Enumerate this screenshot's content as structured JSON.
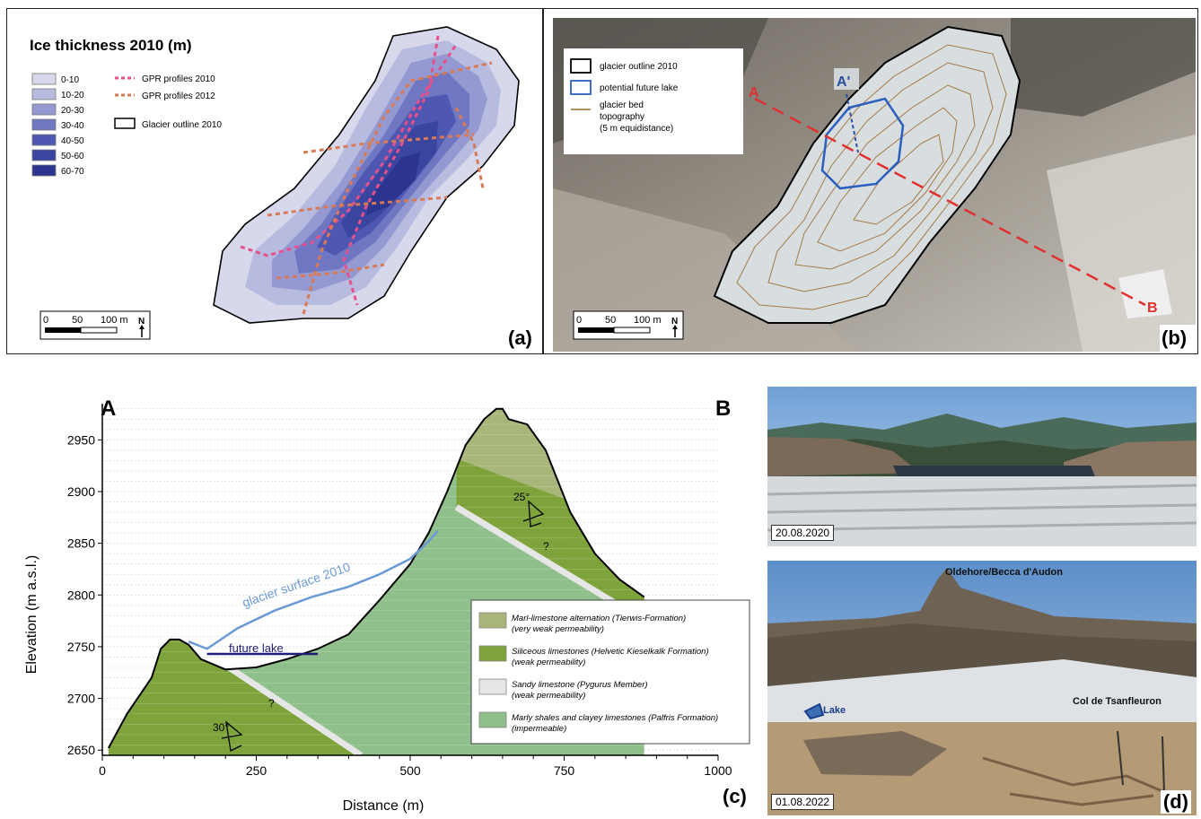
{
  "panel_a": {
    "title": "Ice thickness 2010 (m)",
    "legend": [
      {
        "label": "0-10",
        "color": "#d7d8ec"
      },
      {
        "label": "10-20",
        "color": "#b8bbe0"
      },
      {
        "label": "20-30",
        "color": "#9599d2"
      },
      {
        "label": "30-40",
        "color": "#6f77c3"
      },
      {
        "label": "40-50",
        "color": "#4e57b2"
      },
      {
        "label": "50-60",
        "color": "#3a45a0"
      },
      {
        "label": "60-70",
        "color": "#2b3590"
      }
    ],
    "gpr2010": "GPR profiles 2010",
    "gpr2012": "GPR profiles 2012",
    "outline": "Glacier outline 2010",
    "scale": {
      "t0": "0",
      "t1": "50",
      "t2": "100 m",
      "north": "N"
    },
    "label": "(a)"
  },
  "panel_b": {
    "legend": {
      "outline": "glacier outline 2010",
      "lake": "potential future lake",
      "bed1": "glacier bed",
      "bed2": "topography",
      "bed3": "(5 m equidistance)"
    },
    "marks": {
      "a": "A",
      "aprime": "A'",
      "b": "B"
    },
    "scale": {
      "t0": "0",
      "t1": "50",
      "t2": "100 m",
      "north": "N"
    },
    "label": "(b)"
  },
  "panel_c": {
    "label": "(c)",
    "end_a": "A",
    "end_b": "B",
    "annotations": {
      "surface": "glacier surface 2010",
      "lake": "future lake",
      "dip1": "30°",
      "dip2": "25°",
      "q": "?"
    },
    "legend": [
      {
        "name": "Marl-limestone alternation (Tierwis-Formation)",
        "note": "(very weak permeability)",
        "color": "#a9b679"
      },
      {
        "name": "Siliceous limestones (Helvetic Kieselkalk Formation)",
        "note": "(weak permeability)",
        "color": "#7ea33a"
      },
      {
        "name": "Sandy limestone (Pygurus Member)",
        "note": "(weak permeability)",
        "color": "#e6e6e6"
      },
      {
        "name": "Marly shales and clayey limestones (Palfris Formation)",
        "note": "(impermeable)",
        "color": "#8fbf8a"
      }
    ]
  },
  "panel_d": {
    "date1": "20.08.2020",
    "date2": "01.08.2022",
    "peak": "Oldehore/Becca d'Audon",
    "col": "Col de Tsanfleuron",
    "lake": "Lake",
    "label": "(d)"
  },
  "chart_data": {
    "type": "area",
    "title": "",
    "xlabel": "Distance (m)",
    "ylabel": "Elevation (m a.s.l.)",
    "xlim": [
      0,
      1000
    ],
    "ylim": [
      2645,
      2985
    ],
    "xticks": [
      0,
      250,
      500,
      750,
      1000
    ],
    "yticks": [
      2650,
      2700,
      2750,
      2800,
      2850,
      2900,
      2950
    ],
    "series": [
      {
        "name": "bedrock profile",
        "x": [
          10,
          40,
          80,
          95,
          110,
          125,
          140,
          160,
          200,
          250,
          300,
          350,
          400,
          450,
          500,
          530,
          560,
          590,
          620,
          640,
          650,
          660,
          690,
          720,
          760,
          800,
          840,
          880
        ],
        "y": [
          2652,
          2685,
          2720,
          2748,
          2757,
          2757,
          2752,
          2738,
          2728,
          2730,
          2738,
          2748,
          2762,
          2795,
          2830,
          2860,
          2900,
          2945,
          2970,
          2980,
          2980,
          2970,
          2965,
          2940,
          2880,
          2840,
          2815,
          2798
        ]
      },
      {
        "name": "glacier surface 2010",
        "x": [
          140,
          170,
          220,
          280,
          340,
          400,
          450,
          500,
          530,
          545
        ],
        "y": [
          2755,
          2748,
          2768,
          2785,
          2798,
          2808,
          2820,
          2835,
          2852,
          2862
        ]
      },
      {
        "name": "future lake",
        "x": [
          170,
          350
        ],
        "y": [
          2743,
          2743
        ]
      }
    ]
  }
}
